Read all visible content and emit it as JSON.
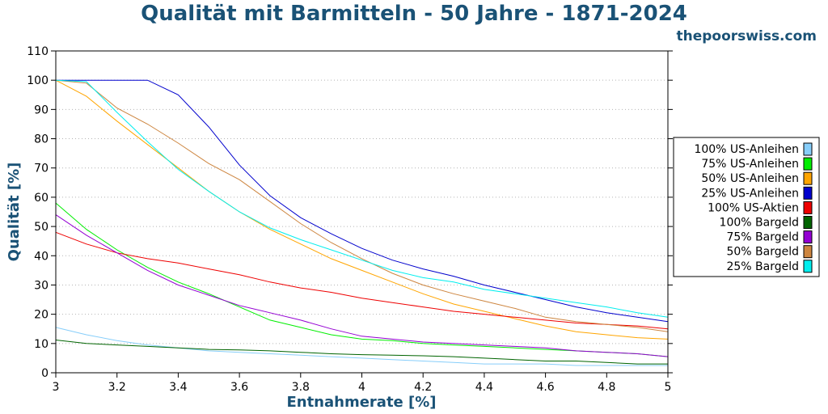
{
  "chart_data": {
    "type": "line",
    "title": "Qualität mit Barmitteln - 50 Jahre - 1871-2024",
    "subtitle": "thepoorswiss.com",
    "xlabel": "Entnahmerate [%]",
    "ylabel": "Qualität [%]",
    "xlim": [
      3,
      5
    ],
    "ylim": [
      0,
      110
    ],
    "x_ticks": [
      "3",
      "3.2",
      "3.4",
      "3.6",
      "3.8",
      "4",
      "4.2",
      "4.4",
      "4.6",
      "4.8",
      "5"
    ],
    "y_ticks": [
      "0",
      "10",
      "20",
      "30",
      "40",
      "50",
      "60",
      "70",
      "80",
      "90",
      "100",
      "110"
    ],
    "grid": true,
    "legend_position": "right",
    "x": [
      3.0,
      3.1,
      3.2,
      3.3,
      3.4,
      3.5,
      3.6,
      3.7,
      3.8,
      3.9,
      4.0,
      4.1,
      4.2,
      4.3,
      4.4,
      4.5,
      4.6,
      4.7,
      4.8,
      4.9,
      5.0
    ],
    "series": [
      {
        "name": "100% US-Anleihen",
        "color": "#87cefa",
        "values": [
          15.5,
          13,
          11,
          9.5,
          8.5,
          7.5,
          7,
          6.5,
          6,
          5.5,
          5,
          4.5,
          4,
          3.5,
          3,
          3,
          3,
          2.5,
          2.5,
          2.5,
          2.5
        ]
      },
      {
        "name": "75% US-Anleihen",
        "color": "#00ee00",
        "values": [
          58,
          49,
          42,
          36,
          31,
          27,
          22.5,
          18,
          15.5,
          13,
          11.5,
          11,
          10,
          9.5,
          9,
          8.5,
          8,
          7.5,
          7,
          6.5,
          5.5
        ]
      },
      {
        "name": "50% US-Anleihen",
        "color": "#ffa500",
        "values": [
          100,
          94.5,
          86,
          78,
          70,
          62,
          55,
          49,
          44,
          39,
          35,
          31,
          27,
          23.5,
          21,
          18.5,
          16,
          14,
          13,
          12,
          11.5
        ]
      },
      {
        "name": "25% US-Anleihen",
        "color": "#0000cd",
        "values": [
          100,
          100,
          100,
          100,
          95,
          84,
          71,
          60.5,
          53,
          47.5,
          42.5,
          38.5,
          35.5,
          33,
          30,
          27.5,
          25,
          22.5,
          20.5,
          19,
          17.5
        ]
      },
      {
        "name": "100% US-Aktien",
        "color": "#ee0000",
        "values": [
          48,
          44,
          41,
          39,
          37.5,
          35.5,
          33.5,
          31,
          29,
          27.5,
          25.5,
          24,
          22.5,
          21,
          20,
          19,
          18,
          17,
          16.5,
          16,
          15
        ]
      },
      {
        "name": "100% Bargeld",
        "color": "#006400",
        "values": [
          11.2,
          10,
          9.5,
          9,
          8.5,
          8,
          7.8,
          7.5,
          7,
          6.5,
          6.2,
          6,
          5.8,
          5.5,
          5,
          4.5,
          4,
          4,
          3.5,
          3,
          3
        ]
      },
      {
        "name": "75% Bargeld",
        "color": "#9400d3",
        "values": [
          54,
          47,
          41,
          35,
          30,
          26.5,
          23,
          20.5,
          18,
          15,
          12.5,
          11.5,
          10.5,
          10,
          9.5,
          9,
          8.5,
          7.5,
          7,
          6.5,
          5.5
        ]
      },
      {
        "name": "50% Bargeld",
        "color": "#cd853f",
        "values": [
          100,
          99,
          90.5,
          85,
          78.5,
          71.5,
          66,
          58.5,
          51,
          44.5,
          39,
          34,
          30,
          27,
          24.5,
          22,
          19,
          17.5,
          16.5,
          15.5,
          14
        ]
      },
      {
        "name": "25% Bargeld",
        "color": "#00eeee",
        "values": [
          100,
          99.5,
          89,
          79,
          69.5,
          62,
          55,
          49.5,
          45.5,
          42,
          38.5,
          35,
          32.5,
          31,
          28.5,
          27,
          25.5,
          24,
          22.5,
          20.5,
          19
        ]
      }
    ],
    "colors": {
      "title": "#1a5276",
      "axis_title": "#1a5276",
      "grid": "#b4b4b4"
    }
  }
}
